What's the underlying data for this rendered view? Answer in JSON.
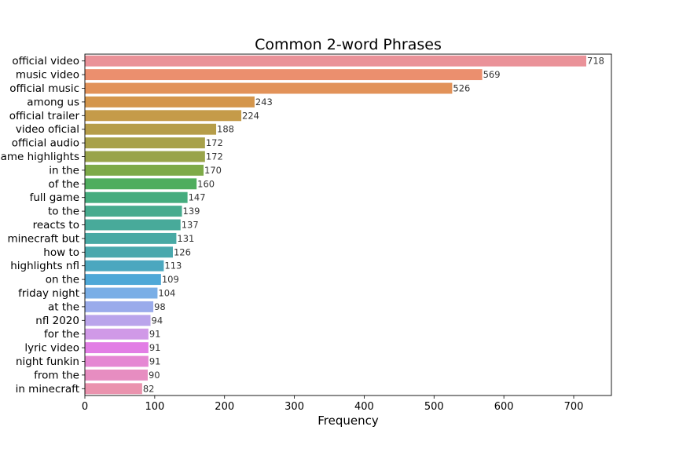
{
  "chart_data": {
    "type": "bar",
    "orientation": "horizontal",
    "title": "Common 2-word Phrases",
    "xlabel": "Frequency",
    "ylabel": "",
    "xlim": [
      0,
      754
    ],
    "xticks": [
      0,
      100,
      200,
      300,
      400,
      500,
      600,
      700
    ],
    "grid": false,
    "categories": [
      "official video",
      "music video",
      "official music",
      "among us",
      "official trailer",
      "video oficial",
      "official audio",
      "game highlights",
      "in the",
      "of the",
      "full game",
      "to the",
      "reacts to",
      "minecraft but",
      "how to",
      "highlights nfl",
      "on the",
      "friday night",
      "at the",
      "nfl 2020",
      "for the",
      "lyric video",
      "night funkin",
      "from the",
      "in minecraft"
    ],
    "values": [
      718,
      569,
      526,
      243,
      224,
      188,
      172,
      172,
      170,
      160,
      147,
      139,
      137,
      131,
      126,
      113,
      109,
      104,
      98,
      94,
      91,
      91,
      91,
      90,
      82
    ],
    "colors": [
      "#ea9299",
      "#eb8f6e",
      "#e29259",
      "#d4964c",
      "#c59b49",
      "#b69d49",
      "#a8a14a",
      "#99a44a",
      "#7eaa48",
      "#4fad5e",
      "#45ac7e",
      "#47ab8e",
      "#48aa9a",
      "#48a9a4",
      "#49a8ad",
      "#4ba7bf",
      "#4ea8d7",
      "#79aee6",
      "#9aabeb",
      "#baa4eb",
      "#d099e7",
      "#e27ee5",
      "#e587d3",
      "#e78dc1",
      "#ea93ae"
    ]
  }
}
